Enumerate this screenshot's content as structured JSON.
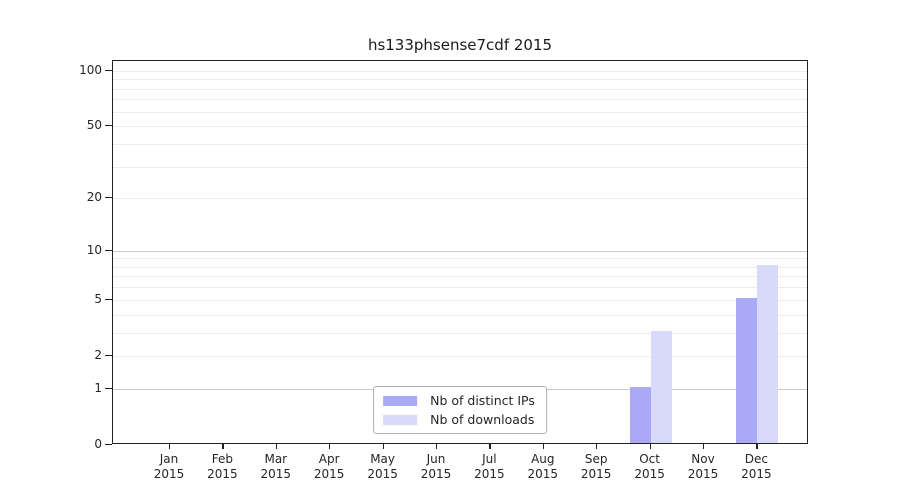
{
  "chart_data": {
    "type": "bar",
    "title": "hs133phsense7cdf 2015",
    "year": "2015",
    "months": [
      "Jan",
      "Feb",
      "Mar",
      "Apr",
      "May",
      "Jun",
      "Jul",
      "Aug",
      "Sep",
      "Oct",
      "Nov",
      "Dec"
    ],
    "categories": [
      "Jan 2015",
      "Feb 2015",
      "Mar 2015",
      "Apr 2015",
      "May 2015",
      "Jun 2015",
      "Jul 2015",
      "Aug 2015",
      "Sep 2015",
      "Oct 2015",
      "Nov 2015",
      "Dec 2015"
    ],
    "series": [
      {
        "name": "Nb of distinct IPs",
        "color": "#a9a9f5",
        "values": [
          0,
          0,
          0,
          0,
          0,
          0,
          0,
          0,
          0,
          1,
          0,
          5
        ]
      },
      {
        "name": "Nb of downloads",
        "color": "#d9d9fa",
        "values": [
          0,
          0,
          0,
          0,
          0,
          0,
          0,
          0,
          0,
          3,
          0,
          8
        ]
      }
    ],
    "xlabel": "",
    "ylabel": "",
    "y_axis": {
      "scale": "log1p",
      "tick_labels": [
        0,
        1,
        2,
        5,
        10,
        20,
        50,
        100
      ],
      "minor_gridlines": [
        3,
        4,
        6,
        7,
        8,
        9,
        30,
        40,
        60,
        70,
        80,
        90
      ],
      "emphasized_gridlines": [
        1,
        10
      ],
      "ylim": [
        0,
        113
      ],
      "grid": "on"
    },
    "legend": {
      "position": "lower-center",
      "entries": [
        "Nb of distinct IPs",
        "Nb of downloads"
      ]
    },
    "colors": {
      "grid_major": "#c9c9c9",
      "grid_minor": "#ececec",
      "axis": "#222222",
      "text": "#262626",
      "legend_border": "#b0b0b0",
      "background": "#ffffff"
    }
  }
}
